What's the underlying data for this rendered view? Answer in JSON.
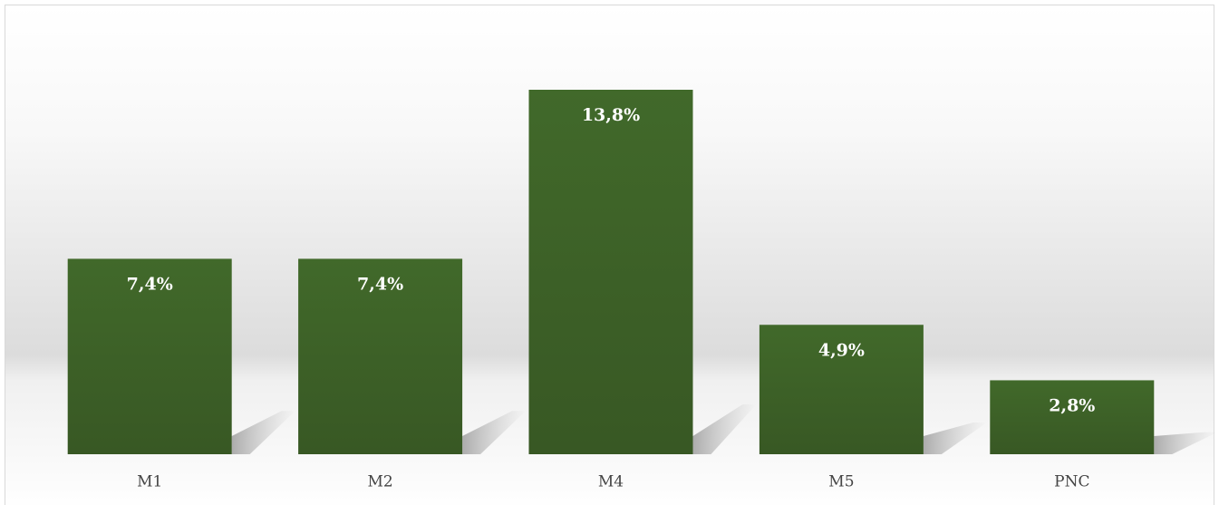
{
  "chart_data": {
    "type": "bar",
    "categories": [
      "M1",
      "M2",
      "M4",
      "M5",
      "PNC"
    ],
    "values": [
      7.4,
      7.4,
      13.8,
      4.9,
      2.8
    ],
    "value_labels": [
      "7,4%",
      "7,4%",
      "13,8%",
      "4,9%",
      "2,8%"
    ],
    "color": "#3f6428"
  }
}
